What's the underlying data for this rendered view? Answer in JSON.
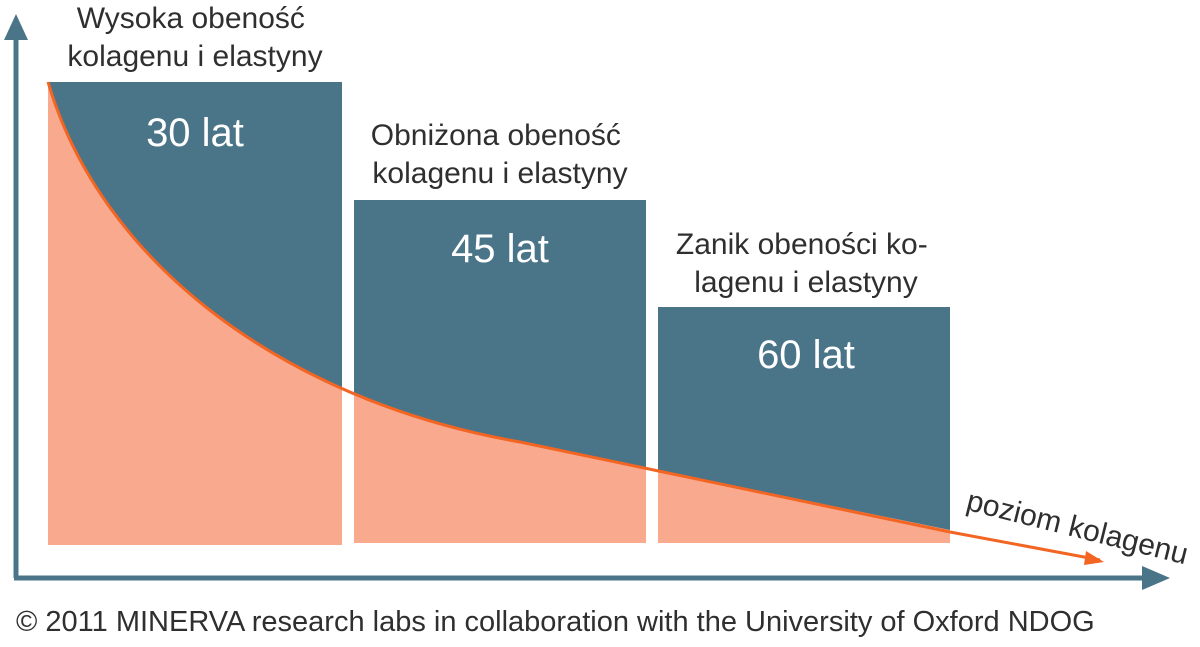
{
  "colors": {
    "block": "#4a7488",
    "fill": "#f9a98d",
    "curve": "#f26522",
    "axis": "#4a7488",
    "text": "#2f2f2f"
  },
  "stages": [
    {
      "title_lines": [
        "Wysoka obeność",
        "kolagenu i elastyny"
      ],
      "age_label": "30 lat"
    },
    {
      "title_lines": [
        "Obniżona obeność",
        "kolagenu i elastyny"
      ],
      "age_label": "45 lat"
    },
    {
      "title_lines": [
        "Zanik obeności ko-",
        "lagenu i elastyny"
      ],
      "age_label": "60 lat"
    }
  ],
  "curve_label": "poziom kolagenu",
  "credit": "© 2011 MINERVA research labs in collaboration with the University of Oxford NDOG"
}
